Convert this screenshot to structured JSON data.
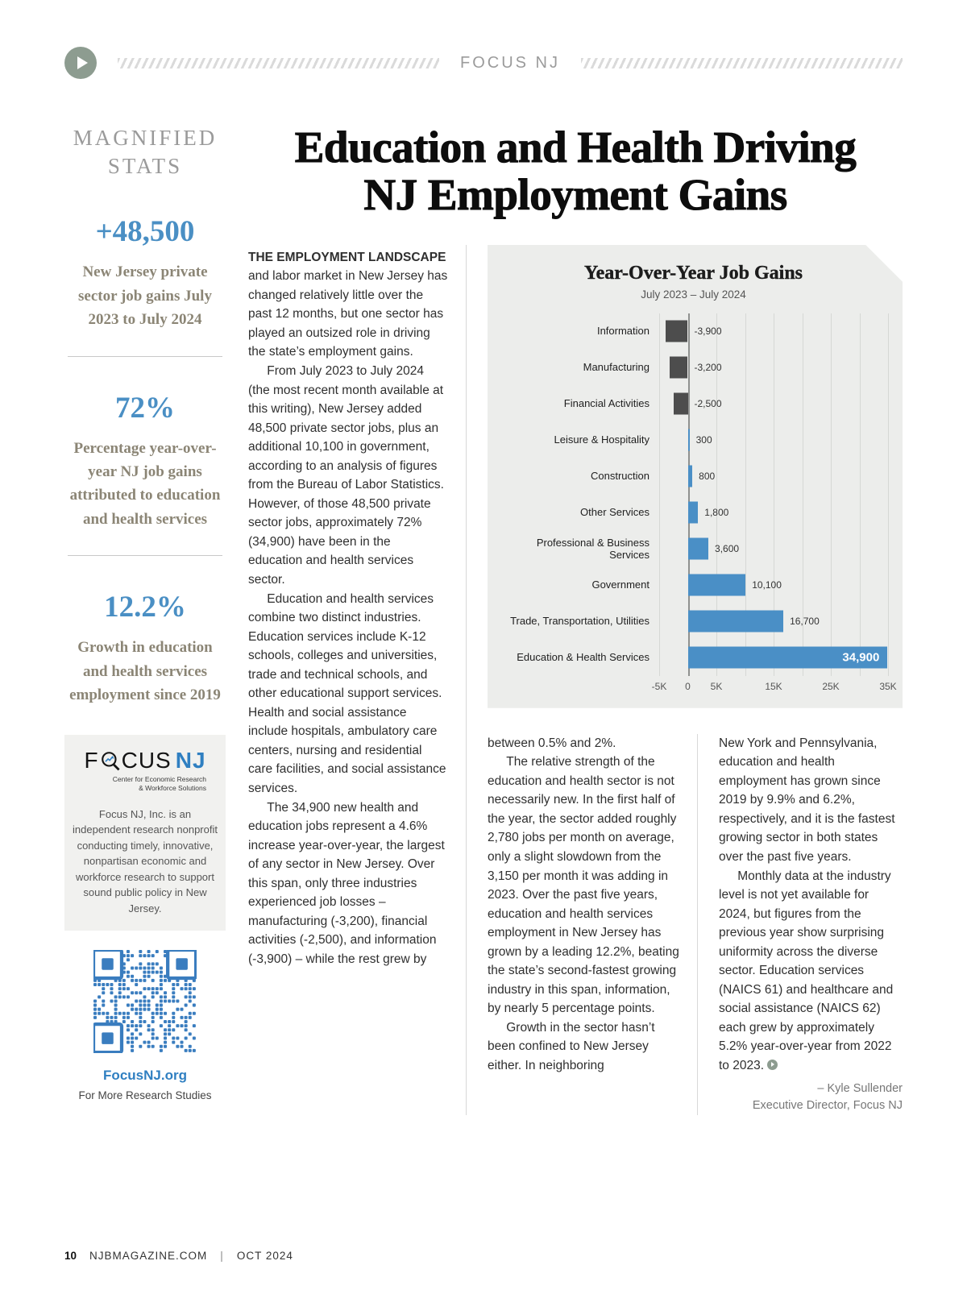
{
  "colors": {
    "accent_blue": "#4a8fc4",
    "bar_positive": "#4a8fc6",
    "bar_negative": "#4d4d4d",
    "qr_blue": "#3a7dbf",
    "sage": "#8d9c90"
  },
  "header": {
    "brand": "FOCUS NJ"
  },
  "sidebar": {
    "title_line1": "MAGNIFIED",
    "title_line2": "STATS",
    "stats": [
      {
        "value": "+48,500",
        "caption": "New Jersey private sector job gains July 2023 to July 2024"
      },
      {
        "value": "72%",
        "caption": "Percentage year-over-year NJ job gains attributed to education and health services"
      },
      {
        "value": "12.2%",
        "caption": "Growth in education and health services employment since 2019"
      }
    ],
    "org": {
      "logo_part1": "F",
      "logo_part2": "CUS",
      "logo_part3": "NJ",
      "tagline_line1": "Center for Economic Research",
      "tagline_line2": "& Workforce Solutions",
      "about": "Focus NJ, Inc. is an independent research nonprofit conducting timely, innovative, nonpartisan economic and workforce research to support sound public policy in New Jersey.",
      "link": "FocusNJ.org",
      "link_caption": "For More Research Studies"
    }
  },
  "article": {
    "title_line1": "Education and Health Driving",
    "title_line2": "NJ Employment Gains",
    "col1": {
      "lead": "THE EMPLOYMENT LANDSCAPE",
      "p1_rest": " and labor market in New Jersey has changed relatively little over the past 12 months, but one sector has played an outsized role in driving the state’s employment gains.",
      "p2": "From July 2023 to July 2024 (the most recent month available at this writing), New Jersey added 48,500 private sector jobs, plus an additional 10,100 in government, according to an analysis of figures from the Bureau of Labor Statistics. However, of those 48,500 private sector jobs, approximately 72% (34,900) have been in the education and health services sector.",
      "p3": "Education and health services combine two distinct industries. Education services include K-12 schools, colleges and universities, trade and technical schools, and other educational support services. Health and social assistance include hospitals, ambulatory care centers, nursing and residential care facilities, and social assistance services.",
      "p4": "The 34,900 new health and education jobs represent a 4.6% increase year-over-year, the largest of any sector in New Jersey. Over this span, only three industries experienced job losses – manufacturing (-3,200), financial activities (-2,500), and information (-3,900) – while the rest grew by"
    },
    "col2": {
      "p1": "between 0.5% and 2%.",
      "p2": "The relative strength of the education and health sector is not necessarily new. In the first half of the year, the sector added roughly 2,780 jobs per month on average, only a slight slowdown from the 3,150 per month it was adding in 2023. Over the past five years, education and health services employment in New Jersey has grown by a leading 12.2%, beating the state’s second-fastest growing industry in this span, information, by nearly 5 percentage points.",
      "p3": "Growth in the sector hasn’t been confined to New Jersey either. In neighboring"
    },
    "col3": {
      "p1": "New York and Pennsylvania, education and health employment has grown since 2019 by 9.9% and 6.2%, respectively, and it is the fastest growing sector in both states over the past five years.",
      "p2": "Monthly data at the industry level is not yet available for 2024, but figures from the previous year show surprising uniformity across the diverse sector. Education services (NAICS 61) and healthcare and social assistance (NAICS 62) each grew by approximately 5.2% year-over-year from 2022 to 2023.",
      "byline_name": "– Kyle Sullender",
      "byline_title": "Executive Director, Focus NJ"
    }
  },
  "chart_data": {
    "type": "bar",
    "orientation": "horizontal",
    "title": "Year-Over-Year Job Gains",
    "subtitle": "July 2023 – July 2024",
    "categories": [
      "Information",
      "Manufacturing",
      "Financial Activities",
      "Leisure & Hospitality",
      "Construction",
      "Other Services",
      "Professional & Business Services",
      "Government",
      "Trade, Transportation, Utilities",
      "Education & Health Services"
    ],
    "values": [
      -3900,
      -3200,
      -2500,
      300,
      800,
      1800,
      3600,
      10100,
      16700,
      34900
    ],
    "value_labels": [
      "-3,900",
      "-3,200",
      "-2,500",
      "300",
      "800",
      "1,800",
      "3,600",
      "10,100",
      "16,700",
      "34,900"
    ],
    "xlim": [
      -5000,
      35000
    ],
    "gridline_interval": 5000,
    "ticks": [
      {
        "value": -5000,
        "label": "-5K"
      },
      {
        "value": 0,
        "label": "0"
      },
      {
        "value": 5000,
        "label": "5K"
      },
      {
        "value": 15000,
        "label": "15K"
      },
      {
        "value": 25000,
        "label": "25K"
      },
      {
        "value": 35000,
        "label": "35K"
      }
    ],
    "legend": "none",
    "grid": "vertical"
  },
  "footer": {
    "page_number": "10",
    "site": "NJBMAGAZINE.COM",
    "separator": "|",
    "issue": "OCT 2024"
  }
}
